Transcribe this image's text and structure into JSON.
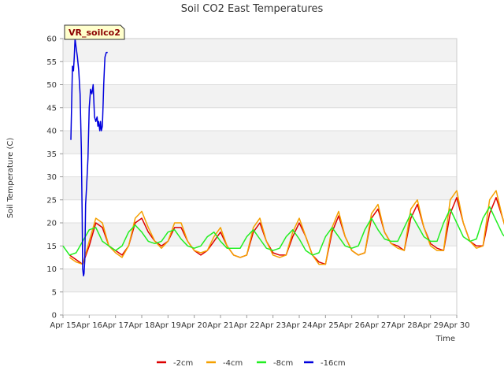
{
  "chart_data": {
    "type": "line",
    "title": "Soil CO2 East Temperatures",
    "xlabel": "Time",
    "ylabel": "Soil Temperature (C)",
    "badge": "VR_soilco2",
    "xlim": [
      15,
      30
    ],
    "ylim": [
      0,
      60
    ],
    "x_ticks": [
      {
        "value": 15,
        "label": "Apr 15"
      },
      {
        "value": 16,
        "label": "Apr 16"
      },
      {
        "value": 17,
        "label": "Apr 17"
      },
      {
        "value": 18,
        "label": "Apr 18"
      },
      {
        "value": 19,
        "label": "Apr 19"
      },
      {
        "value": 20,
        "label": "Apr 20"
      },
      {
        "value": 21,
        "label": "Apr 21"
      },
      {
        "value": 22,
        "label": "Apr 22"
      },
      {
        "value": 23,
        "label": "Apr 23"
      },
      {
        "value": 24,
        "label": "Apr 24"
      },
      {
        "value": 25,
        "label": "Apr 25"
      },
      {
        "value": 26,
        "label": "Apr 26"
      },
      {
        "value": 27,
        "label": "Apr 27"
      },
      {
        "value": 28,
        "label": "Apr 28"
      },
      {
        "value": 29,
        "label": "Apr 29"
      },
      {
        "value": 30,
        "label": "Apr 30"
      }
    ],
    "y_ticks": [
      0,
      5,
      10,
      15,
      20,
      25,
      30,
      35,
      40,
      45,
      50,
      55,
      60
    ],
    "grid": true,
    "legend_position": "bottom",
    "series": [
      {
        "name": "-2cm",
        "color": "#dd0000",
        "x_start": 15.25,
        "x_step": 0.25,
        "values": [
          13.0,
          12.0,
          11.0,
          15.0,
          20.0,
          19.0,
          15.0,
          14.0,
          13.0,
          15.0,
          20.0,
          21.0,
          18.0,
          16.0,
          15.0,
          16.0,
          19.0,
          19.0,
          16.0,
          14.0,
          13.0,
          14.0,
          16.0,
          18.0,
          15.0,
          13.0,
          12.5,
          13.0,
          18.0,
          20.0,
          16.0,
          13.5,
          13.0,
          13.0,
          17.0,
          20.0,
          17.0,
          13.0,
          11.5,
          11.0,
          18.0,
          21.5,
          17.0,
          14.0,
          13.0,
          13.5,
          21.0,
          23.0,
          18.0,
          15.5,
          15.0,
          14.0,
          21.0,
          24.0,
          19.0,
          15.5,
          14.5,
          14.0,
          22.0,
          25.5,
          20.0,
          16.0,
          15.0,
          15.0,
          22.0,
          25.5,
          21.0,
          16.0,
          14.0,
          14.5,
          23.0,
          26.0,
          21.0,
          15.0,
          14.5,
          15.0,
          23.0,
          26.0,
          20.0,
          17.0,
          16.0,
          15.5,
          24.0,
          28.5,
          22.0,
          18.0
        ]
      },
      {
        "name": "-4cm",
        "color": "#f5a000",
        "x_start": 15.25,
        "x_step": 0.25,
        "values": [
          12.5,
          11.5,
          11.0,
          16.0,
          21.0,
          20.0,
          15.0,
          13.5,
          12.5,
          15.0,
          21.0,
          22.5,
          19.0,
          16.0,
          14.5,
          16.0,
          20.0,
          20.0,
          16.0,
          14.0,
          13.5,
          14.0,
          17.0,
          19.0,
          15.0,
          13.0,
          12.5,
          13.0,
          19.0,
          21.0,
          16.0,
          13.0,
          12.5,
          13.0,
          18.0,
          21.0,
          17.0,
          13.0,
          11.0,
          11.0,
          19.0,
          22.5,
          17.0,
          14.0,
          13.0,
          13.5,
          22.0,
          24.0,
          18.0,
          15.5,
          14.5,
          14.0,
          23.0,
          25.0,
          19.0,
          15.0,
          14.0,
          14.0,
          25.0,
          27.0,
          20.0,
          16.0,
          14.5,
          15.0,
          25.0,
          27.0,
          21.0,
          16.0,
          14.0,
          14.5,
          26.0,
          27.5,
          21.0,
          15.0,
          14.0,
          14.5,
          26.0,
          27.5,
          20.0,
          17.0,
          16.0,
          16.0,
          28.0,
          30.0,
          22.0,
          18.5
        ]
      },
      {
        "name": "-8cm",
        "color": "#22ee22",
        "x_start": 15.0,
        "x_step": 0.25,
        "values": [
          15.0,
          13.0,
          13.5,
          16.0,
          18.5,
          19.0,
          16.0,
          15.0,
          14.0,
          15.0,
          18.0,
          19.5,
          18.0,
          16.0,
          15.5,
          16.0,
          18.0,
          18.5,
          16.5,
          15.0,
          14.5,
          15.0,
          17.0,
          18.0,
          16.0,
          14.5,
          14.5,
          14.5,
          17.0,
          18.5,
          16.5,
          14.5,
          14.0,
          14.5,
          17.0,
          18.5,
          16.5,
          14.0,
          13.0,
          13.5,
          17.0,
          19.0,
          17.0,
          15.0,
          14.5,
          15.0,
          18.5,
          21.0,
          18.5,
          16.5,
          16.0,
          16.0,
          19.0,
          22.0,
          19.5,
          17.0,
          16.0,
          16.0,
          20.0,
          23.0,
          20.0,
          17.0,
          16.0,
          16.5,
          21.0,
          23.5,
          20.5,
          17.5,
          16.0,
          16.0,
          21.0,
          23.5,
          20.0,
          16.5,
          16.5,
          16.5,
          21.0,
          23.0,
          20.0,
          18.0,
          17.0,
          17.0,
          21.0,
          25.0,
          22.0,
          20.0
        ]
      },
      {
        "name": "-16cm",
        "color": "#0000dd",
        "x": [
          15.3,
          15.33,
          15.36,
          15.4,
          15.43,
          15.46,
          15.5,
          15.55,
          15.6,
          15.65,
          15.7,
          15.73,
          15.75,
          15.78,
          15.8,
          15.83,
          15.86,
          15.9,
          15.95,
          16.0,
          16.05,
          16.1,
          16.15,
          16.2,
          16.25,
          16.3,
          16.33,
          16.36,
          16.4,
          16.43,
          16.46,
          16.5,
          16.53,
          16.55,
          16.58,
          16.6,
          16.65,
          16.7
        ],
        "values": [
          38.0,
          46.0,
          54.0,
          53.0,
          56.0,
          60.0,
          58.0,
          56.0,
          53.0,
          48.0,
          36.0,
          22.0,
          10.0,
          8.5,
          9.0,
          12.0,
          24.0,
          28.0,
          34.0,
          45.0,
          49.0,
          48.0,
          50.0,
          43.0,
          42.0,
          43.0,
          41.0,
          42.0,
          40.0,
          42.0,
          40.0,
          41.0,
          46.0,
          50.0,
          54.0,
          56.0,
          57.0,
          57.0
        ]
      }
    ]
  }
}
